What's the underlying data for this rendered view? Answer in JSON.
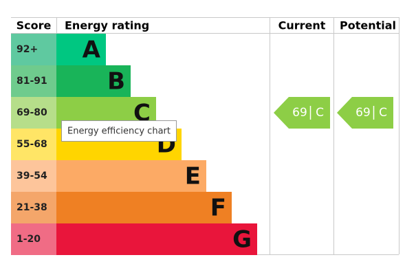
{
  "headers": [
    "Score",
    "Energy rating",
    "Current",
    "Potential"
  ],
  "bands": [
    {
      "score": "92+",
      "letter": "A",
      "color": "#00c781",
      "score_color": "#5fc9a0"
    },
    {
      "score": "81-91",
      "letter": "B",
      "color": "#19b459",
      "score_color": "#6fcb8d"
    },
    {
      "score": "69-80",
      "letter": "C",
      "color": "#8dce46",
      "score_color": "#b6de8a"
    },
    {
      "score": "55-68",
      "letter": "D",
      "color": "#ffd500",
      "score_color": "#ffe566"
    },
    {
      "score": "39-54",
      "letter": "E",
      "color": "#fcaa65",
      "score_color": "#fdc59b"
    },
    {
      "score": "21-38",
      "letter": "F",
      "color": "#ef8023",
      "score_color": "#f4a66a"
    },
    {
      "score": "1-20",
      "letter": "G",
      "color": "#e9153b",
      "score_color": "#f06c85"
    }
  ],
  "current": {
    "value": 69,
    "letter": "C",
    "color": "#8dce46"
  },
  "potential": {
    "value": 69,
    "letter": "C",
    "color": "#8dce46"
  },
  "tooltip": "Energy efficiency chart"
}
